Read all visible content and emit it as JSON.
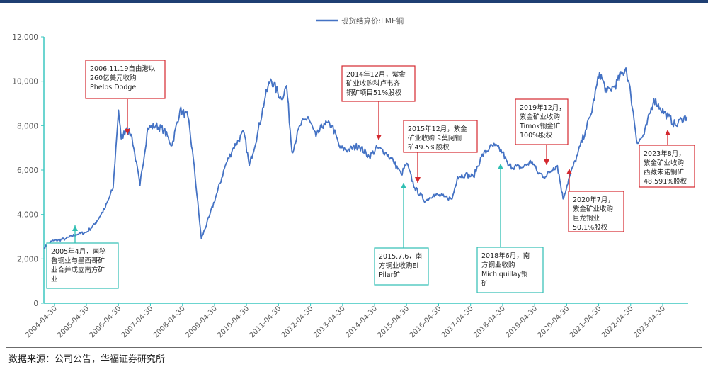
{
  "source_note": "数据来源：公司公告，华福证券研究所",
  "chart_data": {
    "type": "line",
    "title": "",
    "xlabel": "",
    "ylabel": "",
    "legend": "top-center",
    "ylim": [
      0,
      12000
    ],
    "y_ticks": [
      "0",
      "2,000",
      "4,000",
      "6,000",
      "8,000",
      "10,000",
      "12,000"
    ],
    "y_tick_values": [
      0,
      2000,
      4000,
      6000,
      8000,
      10000,
      12000
    ],
    "x_ticks": [
      "2004-04-30",
      "2005-04-30",
      "2006-04-30",
      "2007-04-30",
      "2008-04-30",
      "2009-04-30",
      "2010-04-30",
      "2011-04-30",
      "2012-04-30",
      "2013-04-30",
      "2014-04-30",
      "2015-04-30",
      "2016-04-30",
      "2017-04-30",
      "2018-04-30",
      "2019-04-30",
      "2020-04-30",
      "2021-04-30",
      "2022-04-30",
      "2023-04-30"
    ],
    "series": [
      {
        "name": "现货结算价:LME铜",
        "color": "#4472c4",
        "points": [
          [
            "2004-01-01",
            2500
          ],
          [
            "2004-04-01",
            2800
          ],
          [
            "2004-09-01",
            2900
          ],
          [
            "2005-01-01",
            3100
          ],
          [
            "2005-05-01",
            3200
          ],
          [
            "2005-08-01",
            3550
          ],
          [
            "2005-12-01",
            4300
          ],
          [
            "2006-03-01",
            5200
          ],
          [
            "2006-05-01",
            8700
          ],
          [
            "2006-06-01",
            7400
          ],
          [
            "2006-08-01",
            7900
          ],
          [
            "2006-10-01",
            7500
          ],
          [
            "2007-01-01",
            5300
          ],
          [
            "2007-04-01",
            7900
          ],
          [
            "2007-07-01",
            8000
          ],
          [
            "2007-10-01",
            7800
          ],
          [
            "2008-01-01",
            7100
          ],
          [
            "2008-04-01",
            8700
          ],
          [
            "2008-07-01",
            8400
          ],
          [
            "2008-09-01",
            6500
          ],
          [
            "2008-12-01",
            2900
          ],
          [
            "2009-03-01",
            3900
          ],
          [
            "2009-06-01",
            5000
          ],
          [
            "2009-09-01",
            6200
          ],
          [
            "2009-12-01",
            7000
          ],
          [
            "2010-04-01",
            7700
          ],
          [
            "2010-06-01",
            6200
          ],
          [
            "2010-09-01",
            7600
          ],
          [
            "2010-12-01",
            9300
          ],
          [
            "2011-02-01",
            10100
          ],
          [
            "2011-06-01",
            9200
          ],
          [
            "2011-08-01",
            9800
          ],
          [
            "2011-10-01",
            6800
          ],
          [
            "2012-01-01",
            8000
          ],
          [
            "2012-04-01",
            8400
          ],
          [
            "2012-07-01",
            7500
          ],
          [
            "2012-10-01",
            8100
          ],
          [
            "2013-01-01",
            8000
          ],
          [
            "2013-04-01",
            7000
          ],
          [
            "2013-07-01",
            6900
          ],
          [
            "2013-11-01",
            7100
          ],
          [
            "2014-03-01",
            6600
          ],
          [
            "2014-06-01",
            7000
          ],
          [
            "2014-09-01",
            6800
          ],
          [
            "2014-12-01",
            6400
          ],
          [
            "2015-03-01",
            5800
          ],
          [
            "2015-05-01",
            6300
          ],
          [
            "2015-08-01",
            5200
          ],
          [
            "2015-12-01",
            4600
          ],
          [
            "2016-03-01",
            4900
          ],
          [
            "2016-07-01",
            4800
          ],
          [
            "2016-10-01",
            4700
          ],
          [
            "2016-12-01",
            5700
          ],
          [
            "2017-03-01",
            5800
          ],
          [
            "2017-06-01",
            5700
          ],
          [
            "2017-09-01",
            6600
          ],
          [
            "2017-12-01",
            7000
          ],
          [
            "2018-02-01",
            7100
          ],
          [
            "2018-05-01",
            6800
          ],
          [
            "2018-07-01",
            6200
          ],
          [
            "2018-12-01",
            6100
          ],
          [
            "2019-04-01",
            6400
          ],
          [
            "2019-06-01",
            5900
          ],
          [
            "2019-09-01",
            5700
          ],
          [
            "2019-12-01",
            6100
          ],
          [
            "2020-01-15",
            6200
          ],
          [
            "2020-03-20",
            4700
          ],
          [
            "2020-06-01",
            5700
          ],
          [
            "2020-09-01",
            6700
          ],
          [
            "2020-12-01",
            7800
          ],
          [
            "2021-02-01",
            8500
          ],
          [
            "2021-05-10",
            10400
          ],
          [
            "2021-08-01",
            9500
          ],
          [
            "2021-11-01",
            9800
          ],
          [
            "2022-03-07",
            10600
          ],
          [
            "2022-05-01",
            9400
          ],
          [
            "2022-07-15",
            7200
          ],
          [
            "2022-10-01",
            7600
          ],
          [
            "2023-01-20",
            9200
          ],
          [
            "2023-04-01",
            8800
          ],
          [
            "2023-07-01",
            8400
          ],
          [
            "2023-10-01",
            8000
          ],
          [
            "2023-12-01",
            8300
          ],
          [
            "2024-02-01",
            8400
          ]
        ]
      }
    ],
    "annotations": [
      {
        "color": "red",
        "lines": [
          "2006.11.19自由港以",
          "260亿美元收购",
          "Phelps Dodge"
        ]
      },
      {
        "color": "red",
        "lines": [
          "2014年12月，紫金",
          "矿业收购科卢韦齐",
          "铜矿项目51%股权"
        ]
      },
      {
        "color": "red",
        "lines": [
          "2015年12月，紫金",
          "矿业收购卡莫阿铜",
          "矿49.5%股权"
        ]
      },
      {
        "color": "red",
        "lines": [
          "2019年12月，",
          "紫金矿业收购",
          "Timok铜金矿",
          "100%股权"
        ]
      },
      {
        "color": "red",
        "lines": [
          "2020年7月，",
          "紫金矿业收购",
          "巨龙铜业",
          "50.1%股权"
        ]
      },
      {
        "color": "red",
        "lines": [
          "2023年8月，",
          "紫金矿业收购",
          "西藏朱诺铜矿",
          "48.591%股权"
        ]
      },
      {
        "color": "teal",
        "lines": [
          "2005年4月，南秘",
          "鲁铜业与墨西哥矿",
          "业合并成立南方矿",
          "业"
        ]
      },
      {
        "color": "teal",
        "lines": [
          "2015.7.6，南",
          "方铜业收购El",
          "Pilar矿"
        ]
      },
      {
        "color": "teal",
        "lines": [
          "2018年6月，南",
          "方铜业收购",
          "Michiquillay铜",
          "矿"
        ]
      }
    ]
  }
}
